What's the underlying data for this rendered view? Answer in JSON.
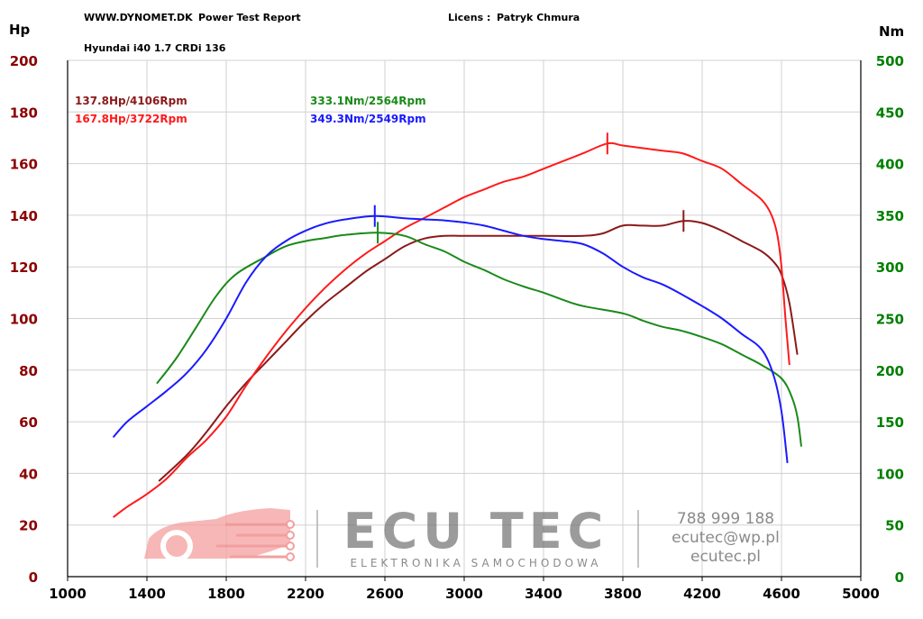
{
  "header": {
    "site": "WWW.DYNOMET.DK",
    "report": "Power Test Report",
    "licence_label": "Licens :",
    "licence_name": "Patryk Chmura",
    "vehicle": "Hyundai i40 1.7 CRDi 136"
  },
  "axes": {
    "left_unit": "Hp",
    "right_unit": "Nm"
  },
  "legend": {
    "hp_stock": "137.8Hp/4106Rpm",
    "hp_tuned": "167.8Hp/3722Rpm",
    "nm_stock": "333.1Nm/2564Rpm",
    "nm_tuned": "349.3Nm/2549Rpm"
  },
  "watermark": {
    "brand": "ECU TEC",
    "tagline": "ELEKTRONIKA SAMOCHODOWA",
    "phone": "788 999 188",
    "email": "ecutec@wp.pl",
    "site": "ecutec.pl"
  },
  "colors": {
    "hp_stock": "#8b1a1a",
    "hp_tuned": "#ff1a1a",
    "nm_stock": "#1a8a1a",
    "nm_tuned": "#1a1aff",
    "left_axis": "#8b0000",
    "right_axis": "#007f00",
    "grid": "#d0d0d0",
    "watermark": "#f08080"
  },
  "chart_data": {
    "type": "line",
    "xlabel": "",
    "xlim": [
      1000,
      5000
    ],
    "x_ticks": [
      1000,
      1400,
      1800,
      2200,
      2600,
      3000,
      3400,
      3800,
      4200,
      4600,
      5000
    ],
    "left_ylim": [
      0,
      200
    ],
    "left_ticks": [
      0,
      20,
      40,
      60,
      80,
      100,
      120,
      140,
      160,
      180,
      200
    ],
    "right_ylim": [
      0,
      500
    ],
    "right_ticks": [
      0,
      50,
      100,
      150,
      200,
      250,
      300,
      350,
      400,
      450,
      500
    ],
    "grid": true,
    "series": [
      {
        "key": "hp_stock",
        "axis": "left",
        "points": [
          [
            1460,
            37
          ],
          [
            1600,
            47
          ],
          [
            1700,
            56
          ],
          [
            1800,
            66
          ],
          [
            1900,
            75
          ],
          [
            2000,
            83
          ],
          [
            2100,
            91
          ],
          [
            2200,
            99
          ],
          [
            2300,
            106
          ],
          [
            2400,
            112
          ],
          [
            2500,
            118
          ],
          [
            2600,
            123
          ],
          [
            2700,
            128
          ],
          [
            2800,
            131
          ],
          [
            2900,
            132
          ],
          [
            3000,
            132
          ],
          [
            3200,
            132
          ],
          [
            3400,
            132
          ],
          [
            3600,
            132
          ],
          [
            3700,
            133
          ],
          [
            3800,
            136
          ],
          [
            3900,
            136
          ],
          [
            4000,
            136
          ],
          [
            4106,
            137.8
          ],
          [
            4200,
            137
          ],
          [
            4300,
            134
          ],
          [
            4400,
            130
          ],
          [
            4500,
            126
          ],
          [
            4560,
            122
          ],
          [
            4600,
            117
          ],
          [
            4640,
            106
          ],
          [
            4680,
            86
          ]
        ],
        "peak": [
          4106,
          137.8
        ]
      },
      {
        "key": "hp_tuned",
        "axis": "left",
        "points": [
          [
            1230,
            23
          ],
          [
            1300,
            27
          ],
          [
            1400,
            32
          ],
          [
            1500,
            38
          ],
          [
            1600,
            46
          ],
          [
            1700,
            53
          ],
          [
            1800,
            62
          ],
          [
            1900,
            74
          ],
          [
            2000,
            85
          ],
          [
            2100,
            95
          ],
          [
            2200,
            104
          ],
          [
            2300,
            112
          ],
          [
            2400,
            119
          ],
          [
            2500,
            125
          ],
          [
            2600,
            130
          ],
          [
            2700,
            135
          ],
          [
            2800,
            139
          ],
          [
            2900,
            143
          ],
          [
            3000,
            147
          ],
          [
            3100,
            150
          ],
          [
            3200,
            153
          ],
          [
            3300,
            155
          ],
          [
            3400,
            158
          ],
          [
            3500,
            161
          ],
          [
            3600,
            164
          ],
          [
            3722,
            167.8
          ],
          [
            3800,
            167
          ],
          [
            3900,
            166
          ],
          [
            4000,
            165
          ],
          [
            4100,
            164
          ],
          [
            4200,
            161
          ],
          [
            4300,
            158
          ],
          [
            4400,
            152
          ],
          [
            4500,
            146
          ],
          [
            4550,
            140
          ],
          [
            4580,
            132
          ],
          [
            4600,
            120
          ],
          [
            4620,
            100
          ],
          [
            4640,
            82
          ]
        ],
        "peak": [
          3722,
          167.8
        ]
      },
      {
        "key": "nm_stock",
        "axis": "right",
        "points": [
          [
            1450,
            187
          ],
          [
            1550,
            212
          ],
          [
            1650,
            242
          ],
          [
            1750,
            272
          ],
          [
            1850,
            293
          ],
          [
            2000,
            310
          ],
          [
            2100,
            320
          ],
          [
            2200,
            325
          ],
          [
            2300,
            328
          ],
          [
            2400,
            331
          ],
          [
            2564,
            333.1
          ],
          [
            2700,
            330
          ],
          [
            2800,
            322
          ],
          [
            2900,
            315
          ],
          [
            3000,
            305
          ],
          [
            3100,
            297
          ],
          [
            3200,
            288
          ],
          [
            3300,
            281
          ],
          [
            3400,
            275
          ],
          [
            3500,
            268
          ],
          [
            3600,
            262
          ],
          [
            3800,
            255
          ],
          [
            3900,
            248
          ],
          [
            4000,
            242
          ],
          [
            4100,
            238
          ],
          [
            4200,
            232
          ],
          [
            4300,
            225
          ],
          [
            4400,
            215
          ],
          [
            4500,
            205
          ],
          [
            4600,
            192
          ],
          [
            4650,
            175
          ],
          [
            4680,
            155
          ],
          [
            4700,
            126
          ]
        ],
        "peak": [
          2564,
          333.1
        ]
      },
      {
        "key": "nm_tuned",
        "axis": "right",
        "points": [
          [
            1230,
            135
          ],
          [
            1300,
            150
          ],
          [
            1400,
            165
          ],
          [
            1500,
            180
          ],
          [
            1600,
            197
          ],
          [
            1700,
            220
          ],
          [
            1800,
            250
          ],
          [
            1900,
            285
          ],
          [
            2000,
            310
          ],
          [
            2100,
            325
          ],
          [
            2200,
            335
          ],
          [
            2300,
            342
          ],
          [
            2400,
            346
          ],
          [
            2549,
            349.3
          ],
          [
            2700,
            347
          ],
          [
            2800,
            346
          ],
          [
            2900,
            345
          ],
          [
            3000,
            343
          ],
          [
            3100,
            340
          ],
          [
            3200,
            335
          ],
          [
            3300,
            330
          ],
          [
            3400,
            327
          ],
          [
            3500,
            325
          ],
          [
            3600,
            322
          ],
          [
            3700,
            313
          ],
          [
            3800,
            300
          ],
          [
            3900,
            290
          ],
          [
            4000,
            283
          ],
          [
            4100,
            273
          ],
          [
            4200,
            262
          ],
          [
            4300,
            250
          ],
          [
            4400,
            235
          ],
          [
            4500,
            220
          ],
          [
            4560,
            195
          ],
          [
            4600,
            160
          ],
          [
            4630,
            110
          ]
        ],
        "peak": [
          2549,
          349.3
        ]
      }
    ]
  }
}
